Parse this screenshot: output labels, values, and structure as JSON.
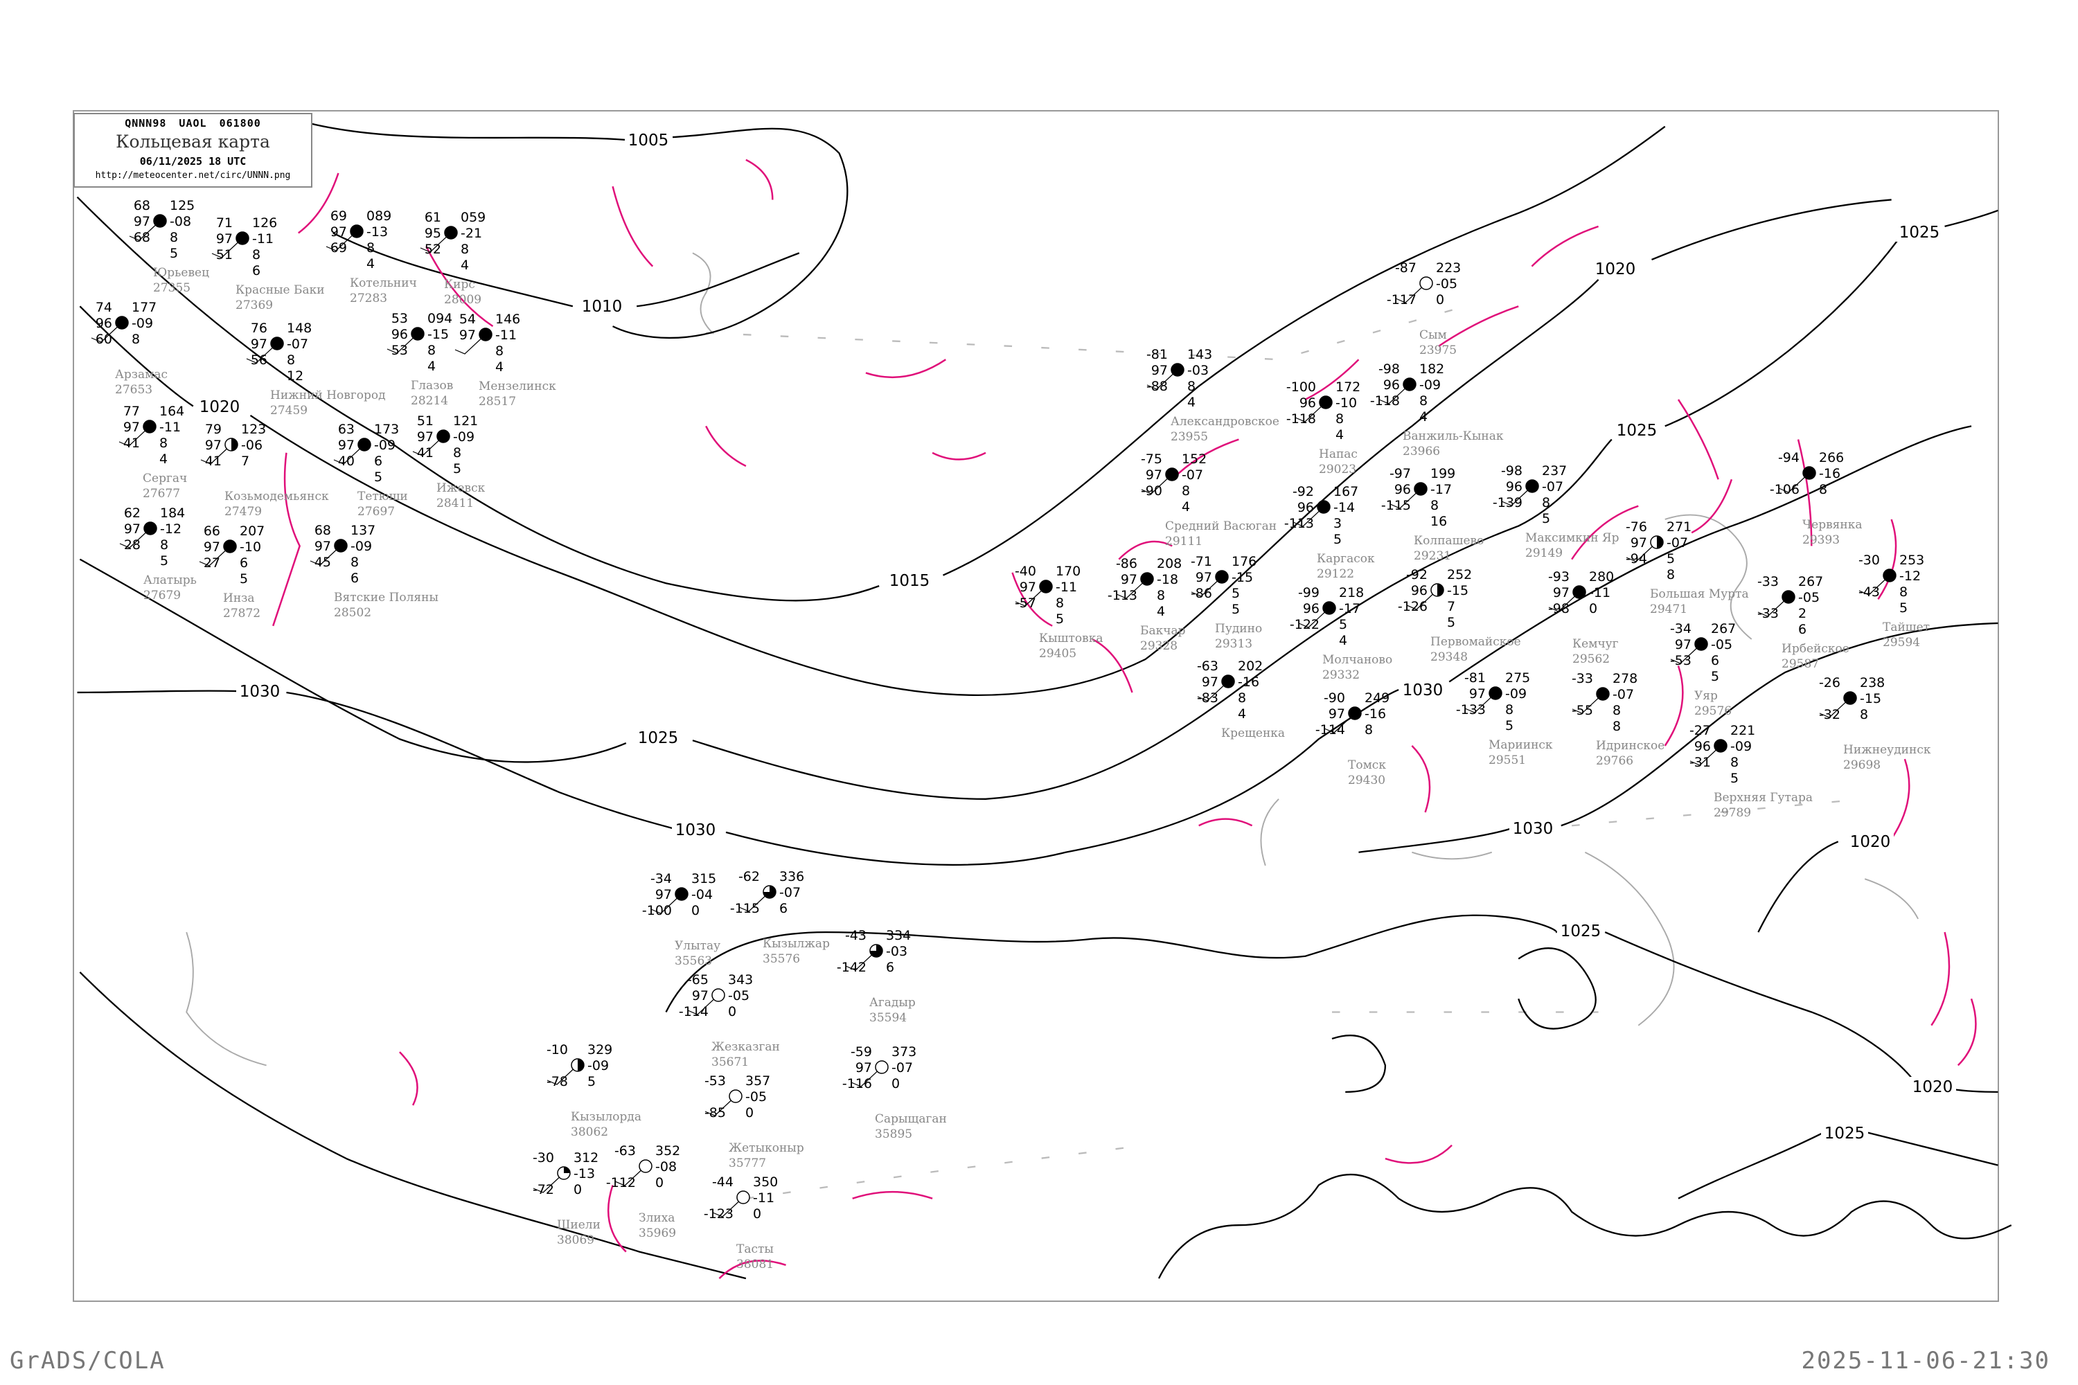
{
  "header": {
    "code": "QNNN98  UAOL  061800",
    "title": "Кольцевая карта",
    "datetime": "06/11/2025 18 UTC",
    "url": "http://meteocenter.net/circ/UNNN.png"
  },
  "footer": {
    "left": "GrADS/COLA",
    "right": "2025-11-06-21:30"
  },
  "colors": {
    "isobar": "#000000",
    "pressure_tendency_line": "#e0107a",
    "coastline": "#aaaaaa",
    "precip_light": "#66ee99",
    "precip_green": "#22cc44",
    "snow_blue": "#3399ff",
    "fog_yellow": "#ffff99"
  },
  "isobar_labels": [
    "1005",
    "1010",
    "1015",
    "1020",
    "1020",
    "1025",
    "1025",
    "1025",
    "1030",
    "1030",
    "1030",
    "1030",
    "1025",
    "1020",
    "1020",
    "1025"
  ],
  "stations": [
    {
      "name": "Юрьевец",
      "index": "27355",
      "t": "68",
      "vis": "97",
      "td": "68",
      "p": "125",
      "tend": "-08",
      "c1": "8",
      "c2": "5",
      "cover": 1
    },
    {
      "name": "Красные Баки",
      "index": "27369",
      "t": "71",
      "vis": "97",
      "td": "51",
      "p": "126",
      "tend": "-11",
      "c1": "8",
      "c2": "6",
      "cover": 1
    },
    {
      "name": "Нижний Новгород",
      "index": "27459",
      "t": "76",
      "vis": "97",
      "td": "56",
      "p": "148",
      "tend": "-07",
      "c1": "8",
      "c2": "12",
      "cover": 1
    },
    {
      "name": "Арзамас",
      "index": "27653",
      "t": "74",
      "vis": "96",
      "td": "60",
      "p": "177",
      "tend": "-09",
      "c1": "8",
      "c2": "",
      "cover": 1
    },
    {
      "name": "Сергач",
      "index": "27677",
      "t": "77",
      "vis": "97",
      "td": "41",
      "p": "164",
      "tend": "-11",
      "c1": "8",
      "c2": "4",
      "cover": 1
    },
    {
      "name": "Козьмодемьянск",
      "index": "27479",
      "t": "79",
      "vis": "97",
      "td": "41",
      "p": "123",
      "tend": "-06",
      "c1": "7",
      "c2": "",
      "cover": 0.5
    },
    {
      "name": "Котельнич",
      "index": "27283",
      "t": "69",
      "vis": "97",
      "td": "69",
      "p": "089",
      "tend": "-13",
      "c1": "8",
      "c2": "4",
      "cover": 1
    },
    {
      "name": "Кирс",
      "index": "28009",
      "t": "61",
      "vis": "95",
      "td": "52",
      "p": "059",
      "tend": "-21",
      "c1": "8",
      "c2": "4",
      "cover": 1
    },
    {
      "name": "Глазов",
      "index": "28214",
      "t": "53",
      "vis": "96",
      "td": "53",
      "p": "094",
      "tend": "-15",
      "c1": "8",
      "c2": "4",
      "cover": 1
    },
    {
      "name": "Алатырь",
      "index": "27679",
      "t": "62",
      "vis": "97",
      "td": "28",
      "p": "184",
      "tend": "-12",
      "c1": "8",
      "c2": "5",
      "cover": 1
    },
    {
      "name": "Инза",
      "index": "27872",
      "t": "66",
      "vis": "97",
      "td": "27",
      "p": "207",
      "tend": "-10",
      "c1": "6",
      "c2": "5",
      "cover": 1
    },
    {
      "name": "Тетюши",
      "index": "27697",
      "t": "63",
      "vis": "97",
      "td": "40",
      "p": "173",
      "tend": "-09",
      "c1": "6",
      "c2": "5",
      "cover": 1
    },
    {
      "name": "Ижевск",
      "index": "28411",
      "t": "51",
      "vis": "97",
      "td": "41",
      "p": "121",
      "tend": "-09",
      "c1": "8",
      "c2": "5",
      "cover": 1
    },
    {
      "name": "Вятские Поляны",
      "index": "28502",
      "t": "68",
      "vis": "97",
      "td": "45",
      "p": "137",
      "tend": "-09",
      "c1": "8",
      "c2": "6",
      "cover": 1
    },
    {
      "name": "Мензелинск",
      "index": "28517",
      "t": "54",
      "vis": "97",
      "td": "",
      "p": "146",
      "tend": "-11",
      "c1": "8",
      "c2": "4",
      "cover": 1
    },
    {
      "name": "Александровское",
      "index": "23955",
      "t": "-81",
      "vis": "97",
      "td": "-88",
      "p": "143",
      "tend": "-03",
      "c1": "8",
      "c2": "4",
      "cover": 1
    },
    {
      "name": "Напас",
      "index": "29023",
      "t": "-100",
      "vis": "96",
      "td": "-118",
      "p": "172",
      "tend": "-10",
      "c1": "8",
      "c2": "4",
      "cover": 1
    },
    {
      "name": "Ванжиль-Кынак",
      "index": "23966",
      "t": "-98",
      "vis": "96",
      "td": "-118",
      "p": "182",
      "tend": "-09",
      "c1": "8",
      "c2": "4",
      "cover": 1
    },
    {
      "name": "Сым",
      "index": "23975",
      "t": "-87",
      "vis": "",
      "td": "-117",
      "p": "223",
      "tend": "-05",
      "c1": "0",
      "c2": "",
      "cover": 0
    },
    {
      "name": "Средний Васюган",
      "index": "29111",
      "t": "-75",
      "vis": "97",
      "td": "-90",
      "p": "152",
      "tend": "-07",
      "c1": "8",
      "c2": "4",
      "cover": 1
    },
    {
      "name": "Каргасок",
      "index": "29122",
      "t": "-92",
      "vis": "96",
      "td": "-113",
      "p": "167",
      "tend": "-14",
      "c1": "3",
      "c2": "5",
      "cover": 1
    },
    {
      "name": "Колпашево",
      "index": "29231",
      "t": "-97",
      "vis": "96",
      "td": "-115",
      "p": "199",
      "tend": "-17",
      "c1": "8",
      "c2": "16",
      "cover": 1
    },
    {
      "name": "Пудино",
      "index": "29313",
      "t": "-71",
      "vis": "97",
      "td": "-86",
      "p": "176",
      "tend": "-15",
      "c1": "5",
      "c2": "5",
      "cover": 1
    },
    {
      "name": "Молчаново",
      "index": "29332",
      "t": "-99",
      "vis": "96",
      "td": "-122",
      "p": "218",
      "tend": "-17",
      "c1": "5",
      "c2": "4",
      "cover": 1
    },
    {
      "name": "Бакчар",
      "index": "29328",
      "t": "-86",
      "vis": "97",
      "td": "-113",
      "p": "208",
      "tend": "-18",
      "c1": "8",
      "c2": "4",
      "cover": 1
    },
    {
      "name": "Первомайское",
      "index": "29348",
      "t": "-92",
      "vis": "96",
      "td": "-126",
      "p": "252",
      "tend": "-15",
      "c1": "7",
      "c2": "5",
      "cover": 0.5
    },
    {
      "name": "Максимкин Яр",
      "index": "29149",
      "t": "-98",
      "vis": "96",
      "td": "-139",
      "p": "237",
      "tend": "-07",
      "c1": "8",
      "c2": "5",
      "cover": 1
    },
    {
      "name": "Томск",
      "index": "29430",
      "t": "-90",
      "vis": "97",
      "td": "-114",
      "p": "249",
      "tend": "-16",
      "c1": "8",
      "c2": "",
      "cover": 1
    },
    {
      "name": "Кыштовка",
      "index": "29405",
      "t": "-40",
      "vis": "97",
      "td": "-57",
      "p": "170",
      "tend": "-11",
      "c1": "8",
      "c2": "5",
      "cover": 1
    },
    {
      "name": "Мариинск",
      "index": "29551",
      "t": "-81",
      "vis": "97",
      "td": "-133",
      "p": "275",
      "tend": "-09",
      "c1": "8",
      "c2": "5",
      "cover": 1
    },
    {
      "name": "Крещенка",
      "index": "",
      "t": "-63",
      "vis": "97",
      "td": "-83",
      "p": "202",
      "tend": "-16",
      "c1": "8",
      "c2": "4",
      "cover": 1
    },
    {
      "name": "Червянка",
      "index": "29393",
      "t": "-94",
      "vis": "",
      "td": "-106",
      "p": "266",
      "tend": "-16",
      "c1": "8",
      "c2": "",
      "cover": 1
    },
    {
      "name": "Большая Мурта",
      "index": "29471",
      "t": "-76",
      "vis": "97",
      "td": "-94",
      "p": "271",
      "tend": "-07",
      "c1": "5",
      "c2": "8",
      "cover": 0.5
    },
    {
      "name": "Кемчуг",
      "index": "29562",
      "t": "-93",
      "vis": "97",
      "td": "-98",
      "p": "280",
      "tend": "-11",
      "c1": "0",
      "c2": "",
      "cover": 1
    },
    {
      "name": "Уяр",
      "index": "29576",
      "t": "-34",
      "vis": "97",
      "td": "-53",
      "p": "267",
      "tend": "-05",
      "c1": "6",
      "c2": "5",
      "cover": 1
    },
    {
      "name": "Ирбейское",
      "index": "29587",
      "t": "-33",
      "vis": "",
      "td": "-33",
      "p": "267",
      "tend": "-05",
      "c1": "2",
      "c2": "6",
      "cover": 1
    },
    {
      "name": "Тайшет",
      "index": "29594",
      "t": "-30",
      "vis": "",
      "td": "-43",
      "p": "253",
      "tend": "-12",
      "c1": "8",
      "c2": "5",
      "cover": 1
    },
    {
      "name": "Нижнеудинск",
      "index": "29698",
      "t": "-26",
      "vis": "",
      "td": "-32",
      "p": "238",
      "tend": "-15",
      "c1": "8",
      "c2": "",
      "cover": 1
    },
    {
      "name": "Верхняя Гутара",
      "index": "29789",
      "t": "-27",
      "vis": "96",
      "td": "-31",
      "p": "221",
      "tend": "-09",
      "c1": "8",
      "c2": "5",
      "cover": 1
    },
    {
      "name": "Идринское",
      "index": "29766",
      "t": "-33",
      "vis": "",
      "td": "-55",
      "p": "278",
      "tend": "-07",
      "c1": "8",
      "c2": "8",
      "cover": 1
    },
    {
      "name": "Улытау",
      "index": "35563",
      "t": "-34",
      "vis": "97",
      "td": "-100",
      "p": "315",
      "tend": "-04",
      "c1": "0",
      "c2": "",
      "cover": 1
    },
    {
      "name": "Жезказган",
      "index": "35671",
      "t": "-65",
      "vis": "97",
      "td": "-114",
      "p": "343",
      "tend": "-05",
      "c1": "0",
      "c2": "",
      "cover": 0
    },
    {
      "name": "Кызылжар",
      "index": "35576",
      "t": "-62",
      "vis": "",
      "td": "-115",
      "p": "336",
      "tend": "-07",
      "c1": "6",
      "c2": "",
      "cover": 0.75
    },
    {
      "name": "Агадыр",
      "index": "35594",
      "t": "-43",
      "vis": "",
      "td": "-142",
      "p": "334",
      "tend": "-03",
      "c1": "6",
      "c2": "",
      "cover": 0.75
    },
    {
      "name": "Жетыконыр",
      "index": "35777",
      "t": "-53",
      "vis": "",
      "td": "-85",
      "p": "357",
      "tend": "-05",
      "c1": "0",
      "c2": "",
      "cover": 0
    },
    {
      "name": "Кызылорда",
      "index": "38062",
      "t": "-10",
      "vis": "",
      "td": "-78",
      "p": "329",
      "tend": "-09",
      "c1": "5",
      "c2": "",
      "cover": 0.5
    },
    {
      "name": "Злиха",
      "index": "35969",
      "t": "-63",
      "vis": "",
      "td": "-112",
      "p": "352",
      "tend": "-08",
      "c1": "0",
      "c2": "",
      "cover": 0
    },
    {
      "name": "Шиели",
      "index": "38069",
      "t": "-30",
      "vis": "",
      "td": "-72",
      "p": "312",
      "tend": "-13",
      "c1": "0",
      "c2": "",
      "cover": 0.25
    },
    {
      "name": "Тасты",
      "index": "38081",
      "t": "-44",
      "vis": "",
      "td": "-123",
      "p": "350",
      "tend": "-11",
      "c1": "0",
      "c2": "",
      "cover": 0
    },
    {
      "name": "Сарыщаган",
      "index": "35895",
      "t": "-59",
      "vis": "97",
      "td": "-116",
      "p": "373",
      "tend": "-07",
      "c1": "0",
      "c2": "",
      "cover": 0
    }
  ]
}
